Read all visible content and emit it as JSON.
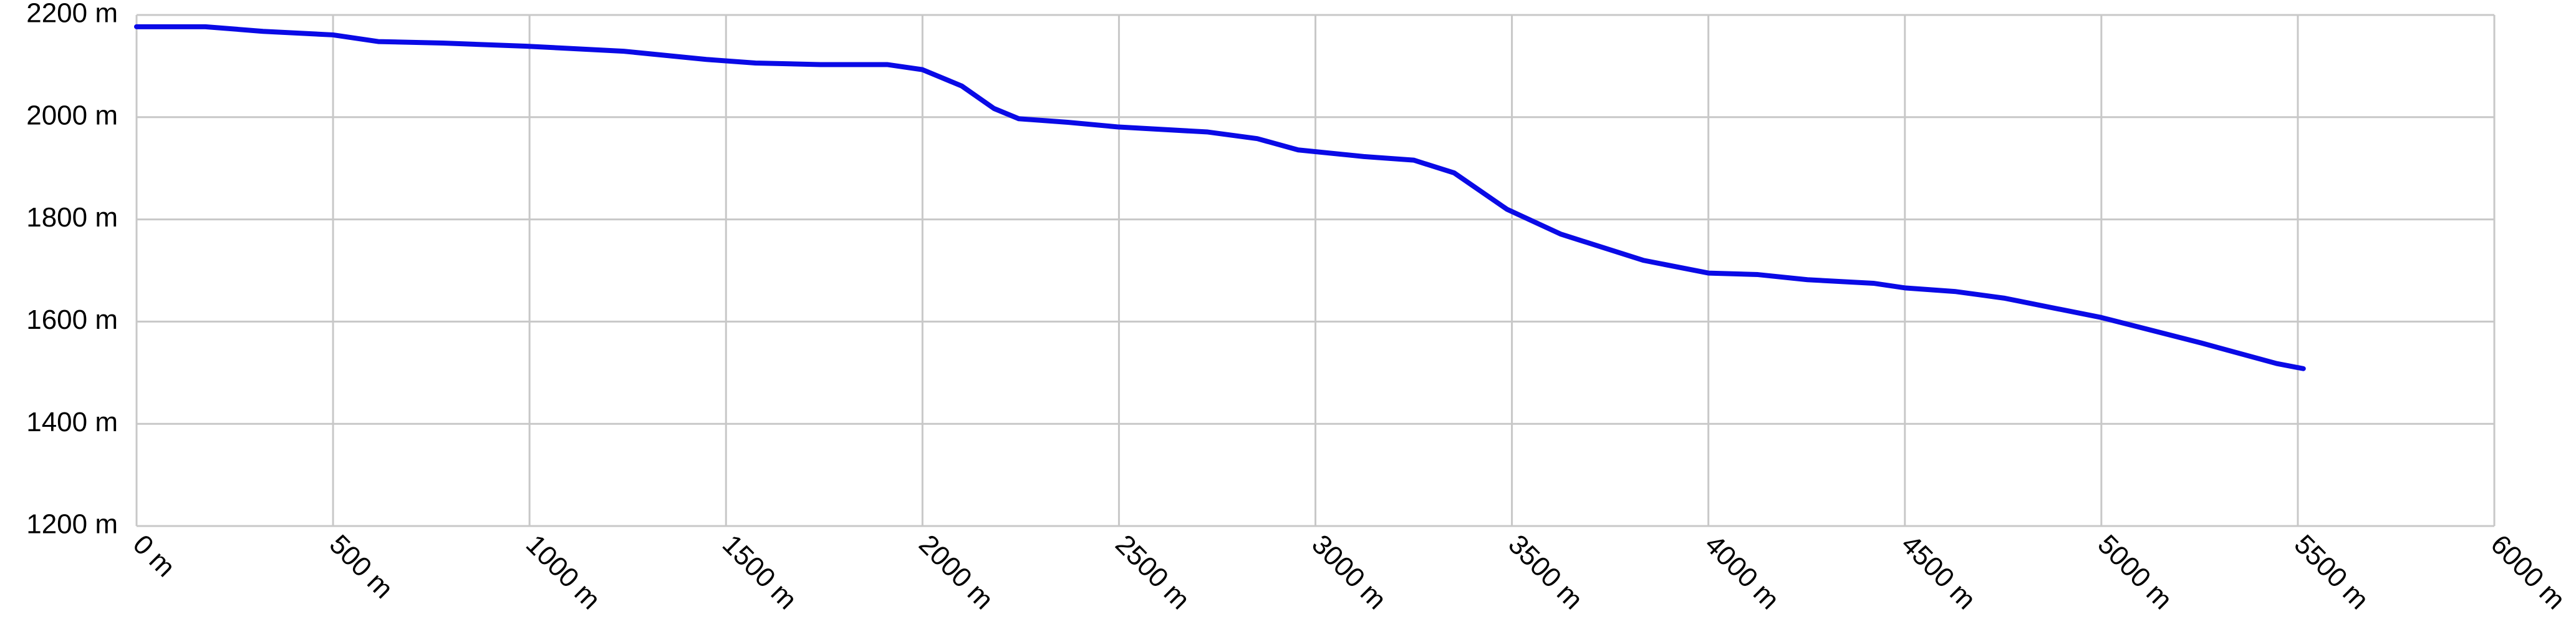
{
  "chart_data": {
    "type": "line",
    "x": [
      0,
      175,
      322,
      500,
      615,
      780,
      990,
      1240,
      1450,
      1575,
      1740,
      1910,
      2000,
      2100,
      2182,
      2245,
      2370,
      2496,
      2726,
      2852,
      2956,
      3123,
      3250,
      3353,
      3487,
      3625,
      3834,
      4000,
      4126,
      4252,
      4420,
      4500,
      4627,
      4752,
      5000,
      5255,
      5446,
      5514
    ],
    "series": [
      {
        "color": "#0a0ae6",
        "values": [
          2177,
          2177,
          2168,
          2161,
          2148,
          2145,
          2139,
          2129,
          2113,
          2106,
          2103,
          2103,
          2093,
          2061,
          2017,
          1997,
          1990,
          1981,
          1971,
          1958,
          1936,
          1923,
          1916,
          1891,
          1820,
          1771,
          1720,
          1695,
          1692,
          1682,
          1675,
          1666,
          1659,
          1646,
          1608,
          1558,
          1518,
          1508
        ]
      }
    ],
    "xlim": [
      0,
      6000
    ],
    "xticks": [
      {
        "value": 0,
        "label": "0 m"
      },
      {
        "value": 500,
        "label": "500 m"
      },
      {
        "value": 1000,
        "label": "1000 m"
      },
      {
        "value": 1500,
        "label": "1500 m"
      },
      {
        "value": 2000,
        "label": "2000 m"
      },
      {
        "value": 2500,
        "label": "2500 m"
      },
      {
        "value": 3000,
        "label": "3000 m"
      },
      {
        "value": 3500,
        "label": "3500 m"
      },
      {
        "value": 4000,
        "label": "4000 m"
      },
      {
        "value": 4500,
        "label": "4500 m"
      },
      {
        "value": 5000,
        "label": "5000 m"
      },
      {
        "value": 5500,
        "label": "5500 m"
      },
      {
        "value": 6000,
        "label": "6000 m"
      }
    ],
    "ylim": [
      1200,
      2200
    ],
    "yticks": [
      {
        "value": 1200,
        "label": "1200 m"
      },
      {
        "value": 1400,
        "label": "1400 m"
      },
      {
        "value": 1600,
        "label": "1600 m"
      },
      {
        "value": 1800,
        "label": "1800 m"
      },
      {
        "value": 2000,
        "label": "2000 m"
      },
      {
        "value": 2200,
        "label": "2200 m"
      }
    ],
    "grid": true
  }
}
